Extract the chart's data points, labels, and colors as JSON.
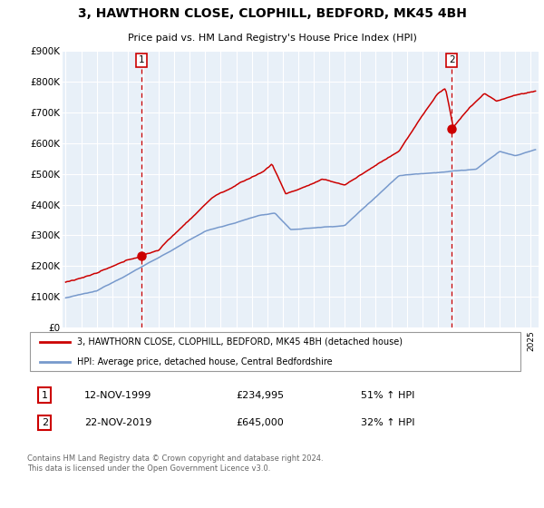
{
  "title": "3, HAWTHORN CLOSE, CLOPHILL, BEDFORD, MK45 4BH",
  "subtitle": "Price paid vs. HM Land Registry's House Price Index (HPI)",
  "legend_line1": "3, HAWTHORN CLOSE, CLOPHILL, BEDFORD, MK45 4BH (detached house)",
  "legend_line2": "HPI: Average price, detached house, Central Bedfordshire",
  "transaction1_date": "12-NOV-1999",
  "transaction1_price": "£234,995",
  "transaction1_hpi": "51% ↑ HPI",
  "transaction2_date": "22-NOV-2019",
  "transaction2_price": "£645,000",
  "transaction2_hpi": "32% ↑ HPI",
  "footer": "Contains HM Land Registry data © Crown copyright and database right 2024.\nThis data is licensed under the Open Government Licence v3.0.",
  "red_color": "#cc0000",
  "blue_color": "#7799cc",
  "plot_bg": "#e8f0f8",
  "grid_color": "#ffffff",
  "vline_color": "#cc0000",
  "marker_color": "#cc0000",
  "ylim": [
    0,
    900000
  ],
  "yticks": [
    0,
    100000,
    200000,
    300000,
    400000,
    500000,
    600000,
    700000,
    800000,
    900000
  ],
  "ytick_labels": [
    "£0",
    "£100K",
    "£200K",
    "£300K",
    "£400K",
    "£500K",
    "£600K",
    "£700K",
    "£800K",
    "£900K"
  ],
  "transaction1_x": 1999.9,
  "transaction1_y": 234995,
  "transaction2_x": 2019.9,
  "transaction2_y": 645000,
  "xmin": 1994.8,
  "xmax": 2025.5
}
